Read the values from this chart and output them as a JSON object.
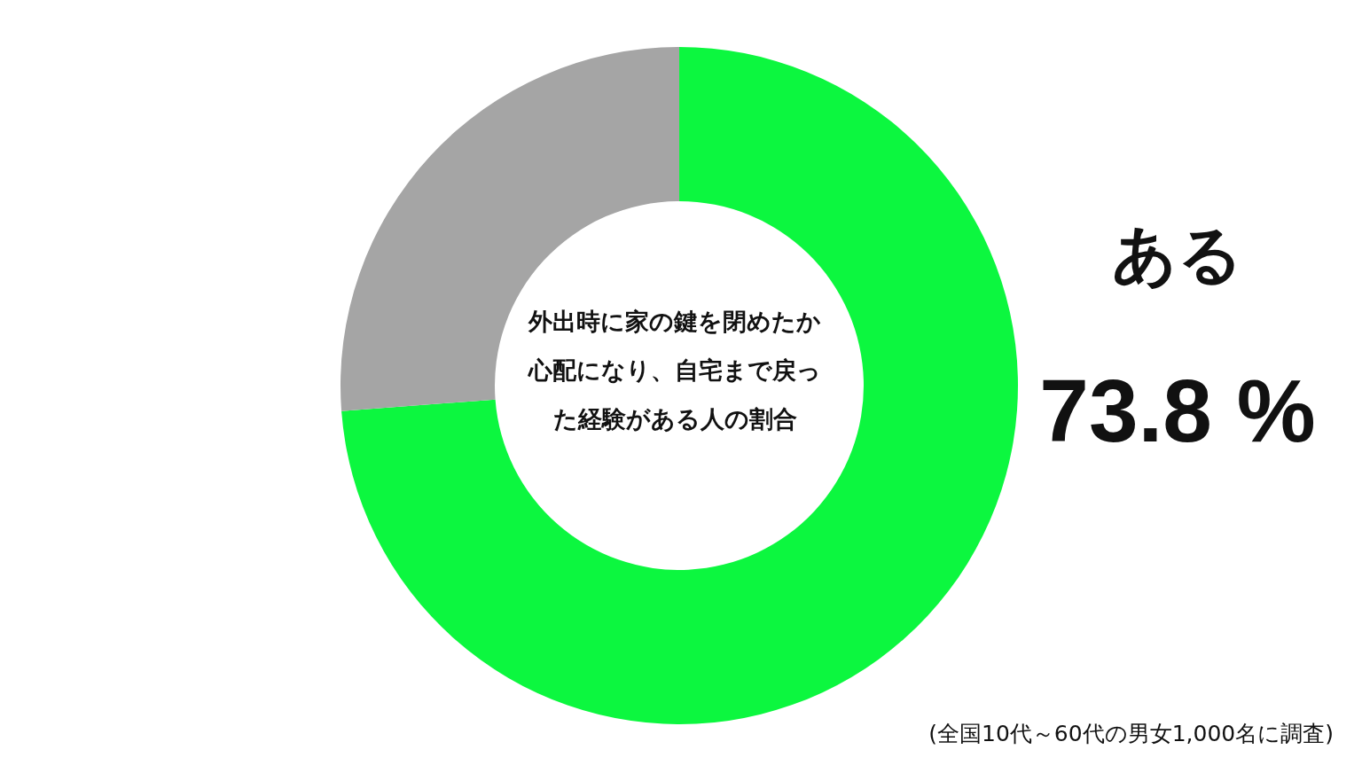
{
  "chart_data": {
    "type": "donut",
    "title": "外出時に家の鍵を閉めたか心配になり、自宅まで戻った経験がある人の割合",
    "categories": [
      "ある",
      null
    ],
    "values": [
      73.8,
      26.2
    ],
    "colors": [
      "#0cf73f",
      "#a5a5a5"
    ],
    "value_labels": [
      "73.8 %",
      null
    ],
    "legend": false,
    "annotations": [
      "(全国10代～60代の男女1,000名に調査)"
    ]
  }
}
